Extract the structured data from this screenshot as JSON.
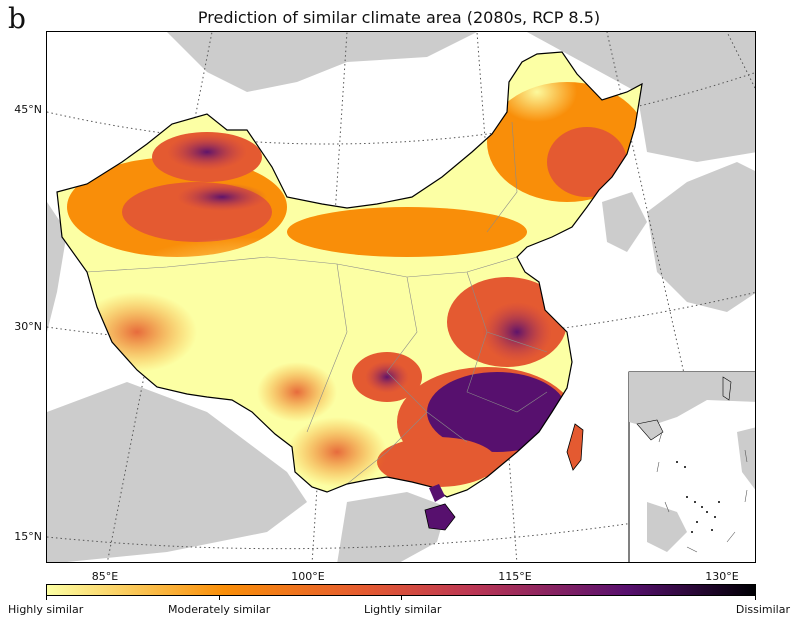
{
  "panel_letter": "b",
  "title": "Prediction of similar climate area (2080s, RCP 8.5)",
  "lat_labels": [
    "45°N",
    "30°N",
    "15°N"
  ],
  "lon_labels": [
    "85°E",
    "100°E",
    "115°E",
    "130°E"
  ],
  "colorbar": {
    "colors": [
      "#fcffa4",
      "#f98e09",
      "#e45a31",
      "#bc3754",
      "#57106e",
      "#000004"
    ],
    "labels": [
      "Highly similar",
      "Moderately similar",
      "Lightly similar",
      "Dissimilar"
    ]
  },
  "map_colors": {
    "land": "#cccccc",
    "sea": "#ffffff",
    "border": "#000000",
    "province_line": "#8a8a8a",
    "graticule": "#555555"
  }
}
